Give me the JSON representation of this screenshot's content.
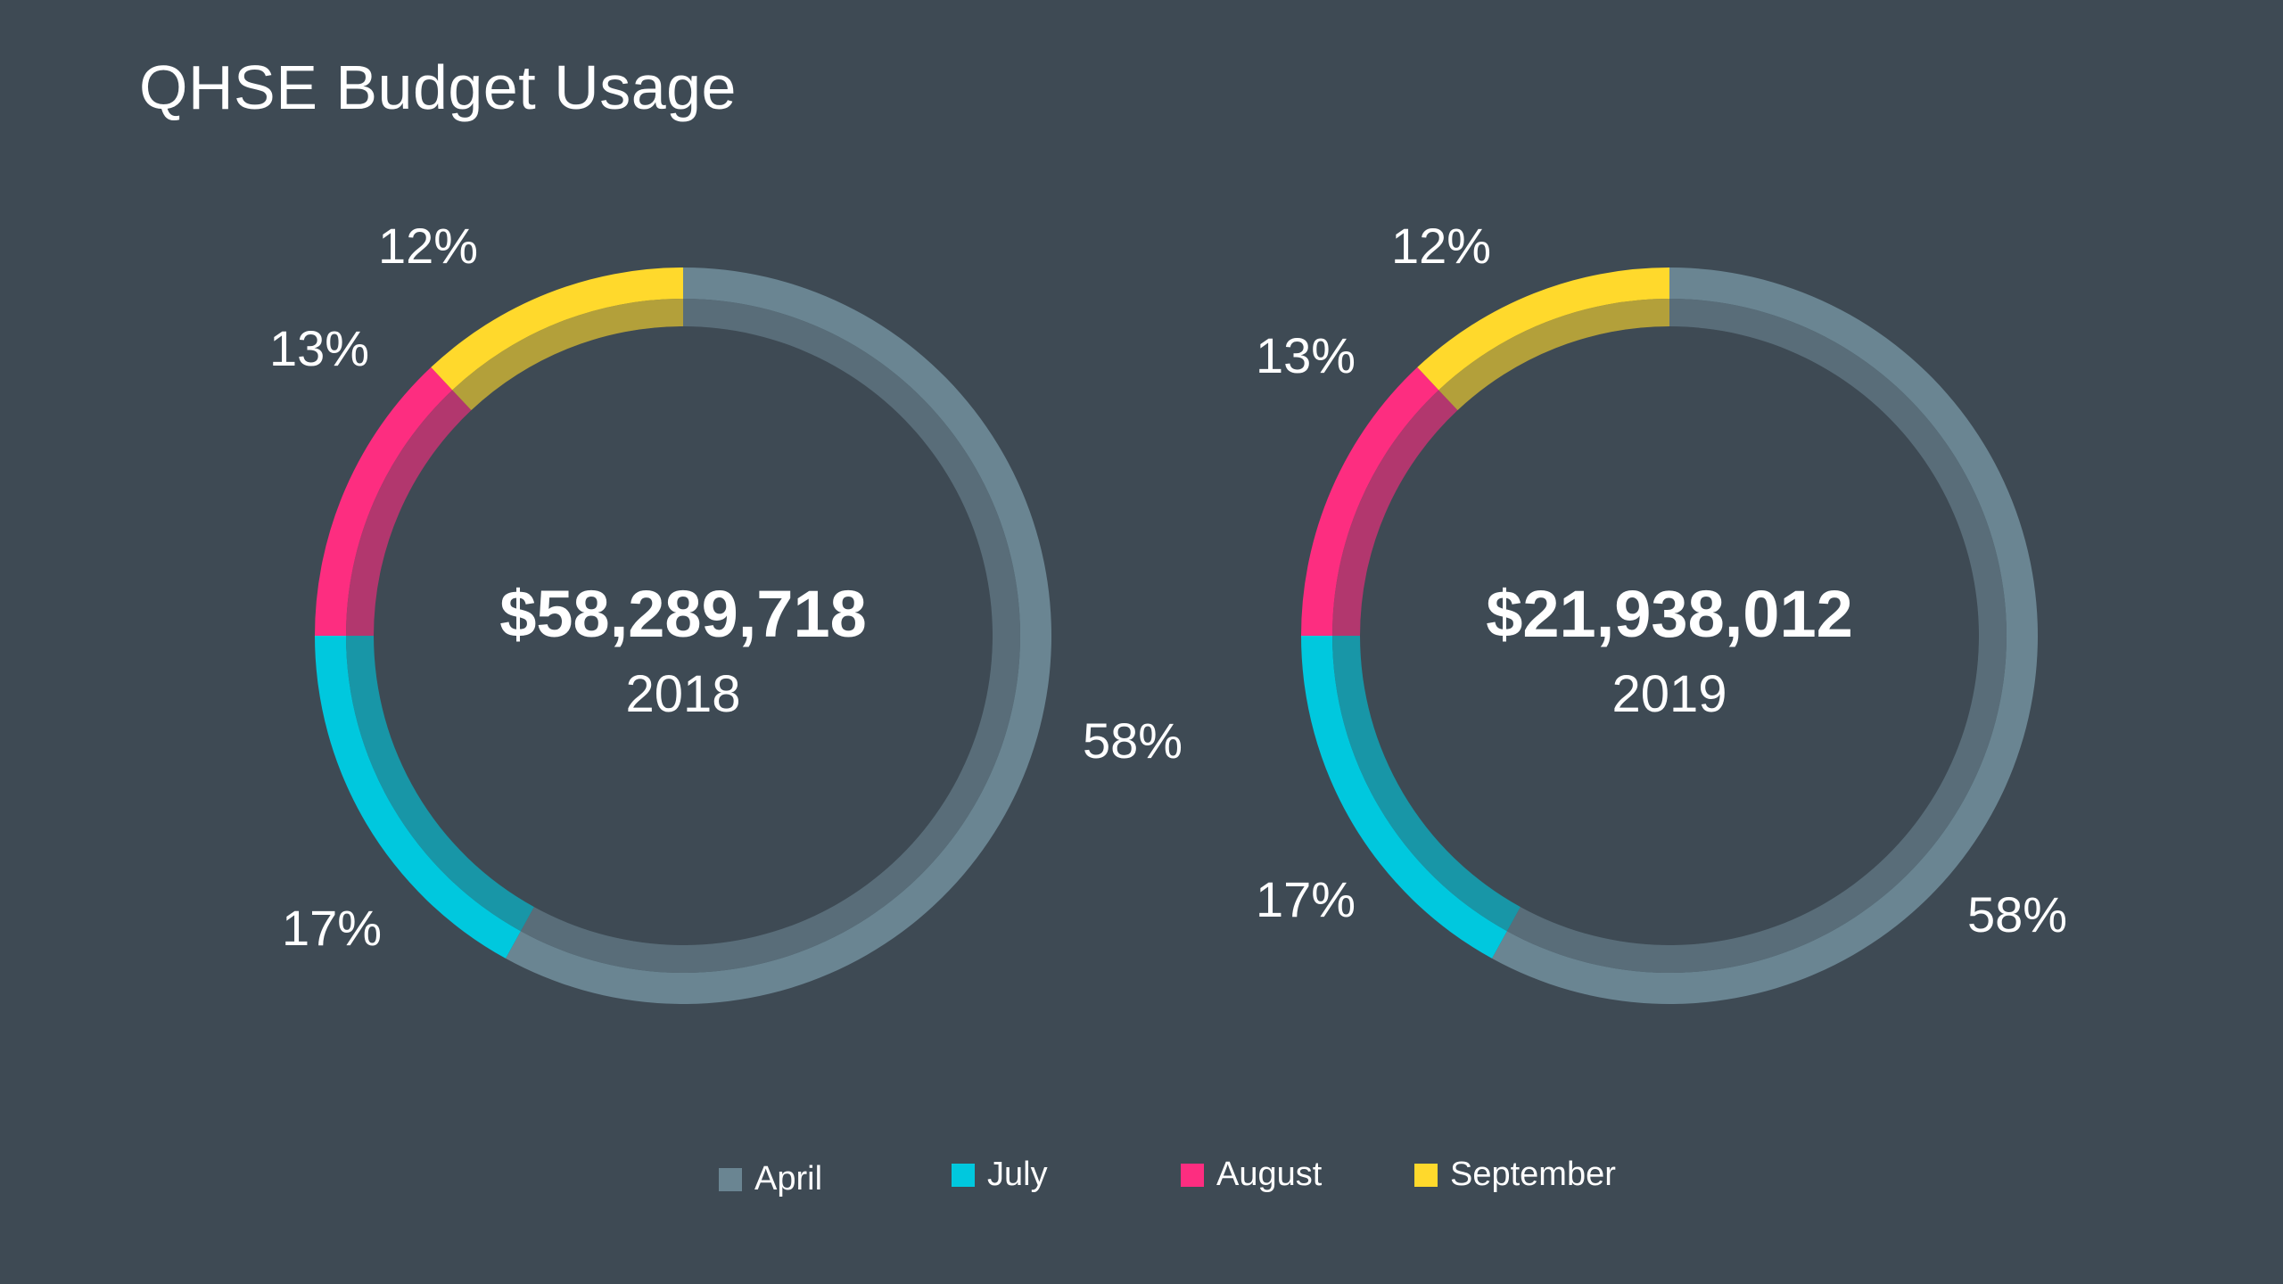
{
  "title": "QHSE Budget Usage",
  "colors": {
    "background": "#3e4a54",
    "April": "#6a8592",
    "July": "#00c8de",
    "August": "#fd2d80",
    "September": "#ffd92c"
  },
  "chart_data": [
    {
      "type": "pie",
      "subtype": "donut",
      "title": "$58,289,718",
      "subtitle": "2018",
      "categories": [
        "April",
        "July",
        "August",
        "September"
      ],
      "values": [
        58,
        17,
        13,
        12
      ],
      "labels": [
        "58%",
        "17%",
        "13%",
        "12%"
      ]
    },
    {
      "type": "pie",
      "subtype": "donut",
      "title": "$21,938,012",
      "subtitle": "2019",
      "categories": [
        "April",
        "July",
        "August",
        "September"
      ],
      "values": [
        58,
        17,
        13,
        12
      ],
      "labels": [
        "58%",
        "17%",
        "13%",
        "12%"
      ]
    }
  ],
  "legend": [
    {
      "label": "April",
      "color": "#6a8592"
    },
    {
      "label": "July",
      "color": "#00c8de"
    },
    {
      "label": "August",
      "color": "#fd2d80"
    },
    {
      "label": "September",
      "color": "#ffd92c"
    }
  ]
}
